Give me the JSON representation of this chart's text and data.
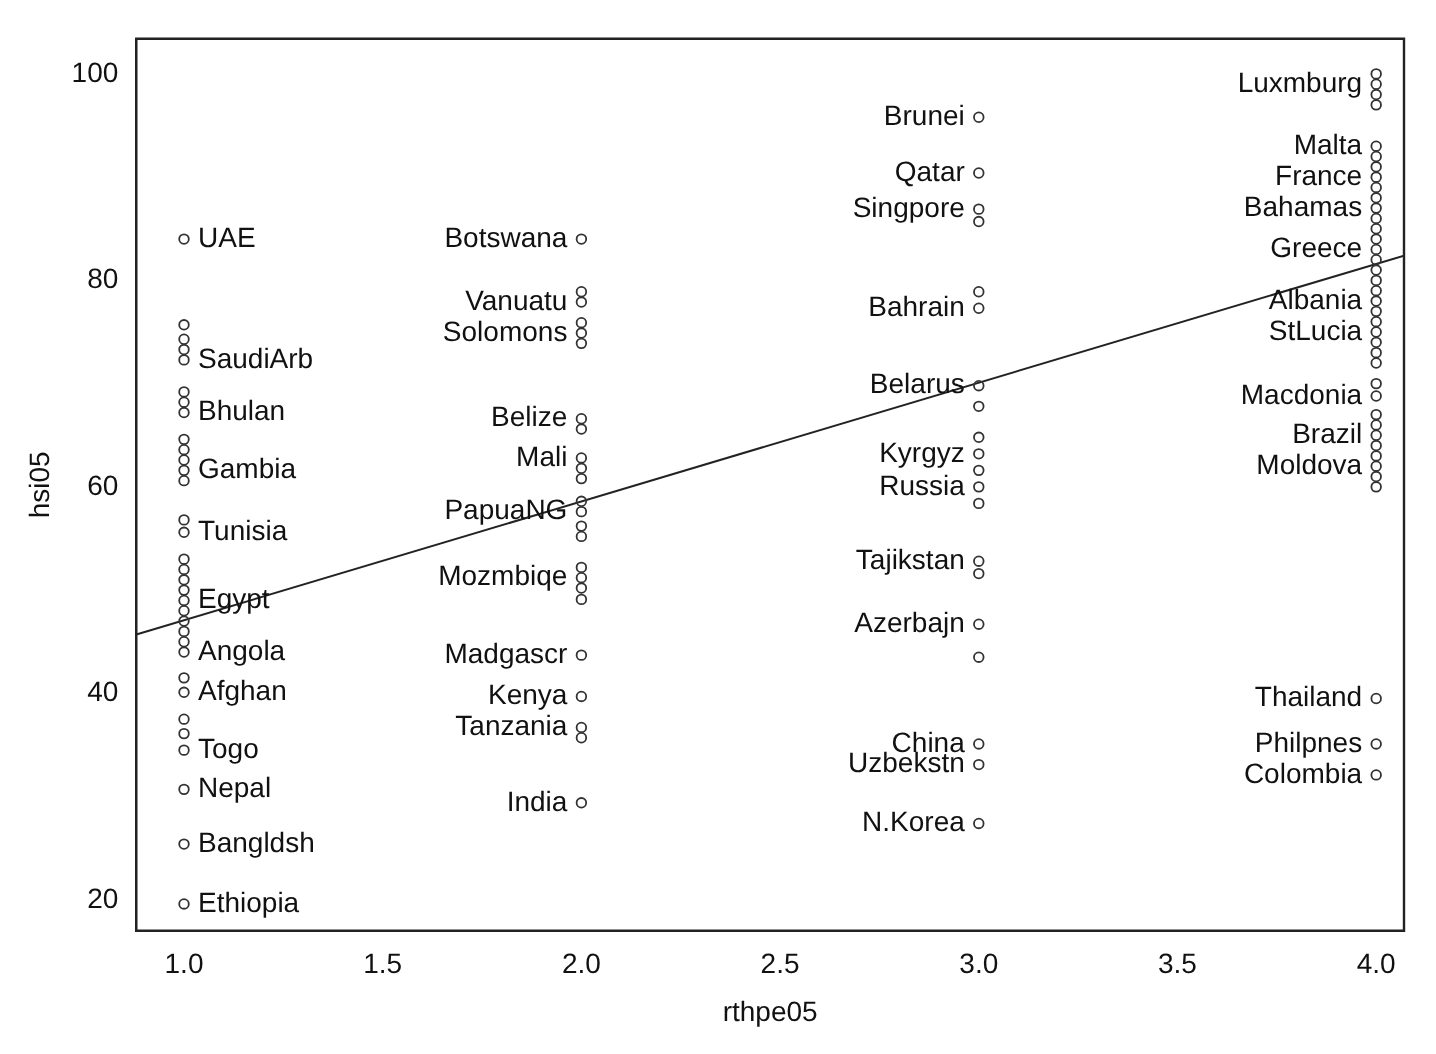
{
  "chart_data": {
    "type": "scatter",
    "xlabel": "rthpe05",
    "ylabel": "hsi05",
    "xlim": [
      0.88,
      4.07
    ],
    "ylim": [
      17,
      103.4
    ],
    "xticks": [
      {
        "value": 1,
        "label": "1.0"
      },
      {
        "value": 1.5,
        "label": "1.5"
      },
      {
        "value": 2,
        "label": "2.0"
      },
      {
        "value": 2.5,
        "label": "2.5"
      },
      {
        "value": 3,
        "label": "3.0"
      },
      {
        "value": 3.5,
        "label": "3.5"
      },
      {
        "value": 4,
        "label": "4.0"
      }
    ],
    "yticks": [
      20,
      40,
      60,
      80,
      100
    ],
    "grid": false,
    "legend": false,
    "marker": "circle",
    "series": [
      {
        "color": "#333333",
        "x": [
          1,
          1,
          1,
          1,
          1,
          1,
          1,
          1,
          1,
          1,
          1,
          1,
          1,
          1,
          1,
          1,
          1,
          1,
          1,
          1,
          1,
          1,
          1,
          1,
          1,
          1,
          1,
          1,
          1,
          1,
          1,
          1,
          1,
          2,
          2,
          2,
          2,
          2,
          2,
          2,
          2,
          2,
          2,
          2,
          2,
          2,
          2,
          2,
          2,
          2,
          2,
          2,
          2,
          2,
          2,
          2,
          2,
          3,
          3,
          3,
          3,
          3,
          3,
          3,
          3,
          3,
          3,
          3,
          3,
          3,
          3,
          3,
          3,
          3,
          3,
          3,
          3,
          4,
          4,
          4,
          4,
          4,
          4,
          4,
          4,
          4,
          4,
          4,
          4,
          4,
          4,
          4,
          4,
          4,
          4,
          4,
          4,
          4,
          4,
          4,
          4,
          4,
          4,
          4,
          4,
          4,
          4,
          4,
          4,
          4,
          4,
          4,
          4,
          4,
          4,
          4
        ],
        "values": [
          84,
          75.7,
          74.3,
          73.3,
          72.3,
          69.2,
          68.2,
          67.2,
          64.6,
          63.6,
          62.6,
          61.6,
          60.6,
          56.8,
          55.6,
          53,
          52,
          51,
          50,
          49,
          48,
          47,
          46,
          45,
          44,
          41.5,
          40.1,
          37.5,
          36.1,
          34.5,
          30.7,
          25.4,
          19.6,
          84,
          78.9,
          77.9,
          75.9,
          74.9,
          73.9,
          66.6,
          65.6,
          62.8,
          61.8,
          60.8,
          58.6,
          57.6,
          56.2,
          55.2,
          52.2,
          51.2,
          50.2,
          49.1,
          43.7,
          39.7,
          36.7,
          35.7,
          29.4,
          95.8,
          90.4,
          86.9,
          85.7,
          78.9,
          77.3,
          69.8,
          67.8,
          64.8,
          63.2,
          61.6,
          60,
          58.4,
          52.8,
          51.6,
          46.7,
          43.5,
          35.1,
          33.1,
          27.4,
          100,
          99,
          98,
          97,
          93,
          92,
          91,
          90,
          89,
          88,
          87,
          86,
          85,
          84,
          83,
          82,
          81,
          80,
          79,
          78,
          77,
          76,
          75,
          74,
          73,
          72,
          70,
          68.8,
          67,
          66,
          65,
          64,
          63,
          62,
          61,
          60,
          39.5,
          35.1,
          32.1
        ]
      },
      {
        "type": "line",
        "color": "#222222",
        "marker": "none",
        "x": [
          0.88,
          4.07
        ],
        "values": [
          45.7,
          82.4
        ]
      }
    ],
    "annotations": [
      {
        "text": "UAE",
        "x": 1,
        "y": 84
      },
      {
        "text": "SaudiArb",
        "x": 1,
        "y": 72.3
      },
      {
        "text": "Bhulan",
        "x": 1,
        "y": 67.2
      },
      {
        "text": "Gambia",
        "x": 1,
        "y": 61.6
      },
      {
        "text": "Tunisia",
        "x": 1,
        "y": 55.6
      },
      {
        "text": "Egypt",
        "x": 1,
        "y": 49
      },
      {
        "text": "Angola",
        "x": 1,
        "y": 44
      },
      {
        "text": "Afghan",
        "x": 1,
        "y": 40.1
      },
      {
        "text": "Togo",
        "x": 1,
        "y": 34.5
      },
      {
        "text": "Nepal",
        "x": 1,
        "y": 30.7
      },
      {
        "text": "Bangldsh",
        "x": 1,
        "y": 25.4
      },
      {
        "text": "Ethiopia",
        "x": 1,
        "y": 19.6
      },
      {
        "text": "Botswana",
        "x": 2,
        "y": 84
      },
      {
        "text": "Vanuatu",
        "x": 2,
        "y": 77.9
      },
      {
        "text": "Solomons",
        "x": 2,
        "y": 74.9
      },
      {
        "text": "Belize",
        "x": 2,
        "y": 66.6
      },
      {
        "text": "Mali",
        "x": 2,
        "y": 62.8
      },
      {
        "text": "PapuaNG",
        "x": 2,
        "y": 57.6
      },
      {
        "text": "Mozmbiqe",
        "x": 2,
        "y": 51.2
      },
      {
        "text": "Madgascr",
        "x": 2,
        "y": 43.7
      },
      {
        "text": "Kenya",
        "x": 2,
        "y": 39.7
      },
      {
        "text": "Tanzania",
        "x": 2,
        "y": 36.7
      },
      {
        "text": "India",
        "x": 2,
        "y": 29.4
      },
      {
        "text": "Brunei",
        "x": 3,
        "y": 95.8
      },
      {
        "text": "Qatar",
        "x": 3,
        "y": 90.4
      },
      {
        "text": "Singpore",
        "x": 3,
        "y": 86.9
      },
      {
        "text": "Bahrain",
        "x": 3,
        "y": 77.3
      },
      {
        "text": "Belarus",
        "x": 3,
        "y": 69.8
      },
      {
        "text": "Kyrgyz",
        "x": 3,
        "y": 63.2
      },
      {
        "text": "Russia",
        "x": 3,
        "y": 60
      },
      {
        "text": "Tajikstan",
        "x": 3,
        "y": 52.8
      },
      {
        "text": "Azerbajn",
        "x": 3,
        "y": 46.7
      },
      {
        "text": "China",
        "x": 3,
        "y": 35.1
      },
      {
        "text": "Uzbekstn",
        "x": 3,
        "y": 33.1
      },
      {
        "text": "N.Korea",
        "x": 3,
        "y": 27.4
      },
      {
        "text": "Luxmburg",
        "x": 4,
        "y": 99
      },
      {
        "text": "Malta",
        "x": 4,
        "y": 93
      },
      {
        "text": "France",
        "x": 4,
        "y": 90
      },
      {
        "text": "Bahamas",
        "x": 4,
        "y": 87
      },
      {
        "text": "Greece",
        "x": 4,
        "y": 83
      },
      {
        "text": "Albania",
        "x": 4,
        "y": 78
      },
      {
        "text": "StLucia",
        "x": 4,
        "y": 75
      },
      {
        "text": "Macdonia",
        "x": 4,
        "y": 68.8
      },
      {
        "text": "Brazil",
        "x": 4,
        "y": 65
      },
      {
        "text": "Moldova",
        "x": 4,
        "y": 62
      },
      {
        "text": "Thailand",
        "x": 4,
        "y": 39.5
      },
      {
        "text": "Philpnes",
        "x": 4,
        "y": 35.1
      },
      {
        "text": "Colombia",
        "x": 4,
        "y": 32.1
      }
    ]
  }
}
